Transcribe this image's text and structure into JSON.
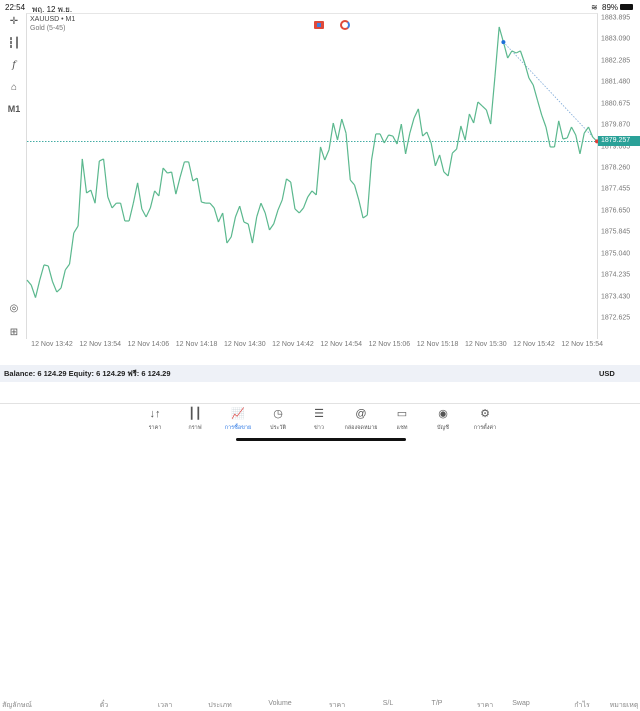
{
  "status_bar": {
    "time": "22:54",
    "date": "พฤ. 12 พ.ย.",
    "battery": "89%",
    "wifi_icon": "wifi-icon",
    "battery_icon": "battery-icon"
  },
  "chart": {
    "symbol": "XAUUSD • M1",
    "subtitle": "Gold (5-45)",
    "timeframe_button": "M1",
    "current_price_label": "1879.257",
    "line_color": "#5bb88e",
    "price_line_color": "#2aa198",
    "y_ticks": [
      "1883.895",
      "1883.090",
      "1882.285",
      "1881.480",
      "1880.675",
      "1879.870",
      "1879.065",
      "1878.260",
      "1877.455",
      "1876.650",
      "1875.845",
      "1875.040",
      "1874.235",
      "1873.430",
      "1872.625"
    ],
    "x_ticks": [
      "12 Nov 13:42",
      "12 Nov 13:54",
      "12 Nov 14:06",
      "12 Nov 14:18",
      "12 Nov 14:30",
      "12 Nov 14:42",
      "12 Nov 14:54",
      "12 Nov 15:06",
      "12 Nov 15:18",
      "12 Nov 15:30",
      "12 Nov 15:42",
      "12 Nov 15:54"
    ],
    "y_range": [
      1872.625,
      1883.895
    ],
    "trade": {
      "open_price": 1882.99,
      "close_price": 1879.26,
      "open_color": "#1e6fd9",
      "close_color": "#e0403a"
    },
    "prices": [
      1874.05,
      1873.86,
      1873.39,
      1874.05,
      1874.62,
      1874.58,
      1873.99,
      1873.6,
      1873.75,
      1874.43,
      1874.65,
      1875.82,
      1876.08,
      1878.6,
      1877.32,
      1877.43,
      1876.94,
      1878.52,
      1878.6,
      1877.17,
      1876.76,
      1876.94,
      1876.94,
      1876.27,
      1876.27,
      1876.94,
      1877.7,
      1876.72,
      1876.42,
      1876.76,
      1877.4,
      1877.21,
      1878.26,
      1878.07,
      1878.11,
      1877.28,
      1877.92,
      1878.49,
      1878.49,
      1877.77,
      1877.88,
      1876.98,
      1876.94,
      1876.94,
      1876.76,
      1876.23,
      1876.57,
      1875.44,
      1875.67,
      1876.42,
      1876.83,
      1876.23,
      1876.16,
      1875.44,
      1876.42,
      1876.94,
      1876.57,
      1875.93,
      1876.16,
      1876.68,
      1877.06,
      1877.85,
      1877.73,
      1876.72,
      1876.57,
      1876.76,
      1877.17,
      1877.4,
      1877.25,
      1879.05,
      1878.56,
      1878.94,
      1879.95,
      1879.31,
      1880.1,
      1879.57,
      1877.81,
      1877.62,
      1877.06,
      1876.38,
      1876.49,
      1878.56,
      1879.54,
      1879.54,
      1879.2,
      1879.5,
      1879.46,
      1879.16,
      1879.91,
      1878.79,
      1879.57,
      1880.14,
      1880.48,
      1879.46,
      1879.61,
      1879.2,
      1878.34,
      1878.75,
      1878.11,
      1877.96,
      1878.82,
      1878.97,
      1879.84,
      1879.31,
      1880.29,
      1879.95,
      1880.74,
      1880.59,
      1880.44,
      1879.91,
      1881.68,
      1883.56,
      1882.99,
      1882.39,
      1882.66,
      1882.58,
      1882.66,
      1882.2,
      1881.64,
      1881.38,
      1880.81,
      1880.25,
      1879.8,
      1879.05,
      1879.05,
      1880.03,
      1879.35,
      1879.39,
      1879.8,
      1879.5,
      1878.79,
      1879.57,
      1879.8,
      1879.42,
      1879.26
    ]
  },
  "table": {
    "columns": [
      "สัญลักษณ์",
      "ตั๋ว",
      "เวลา",
      "ประเภท",
      "Volume",
      "ราคา",
      "S/L",
      "T/P",
      "ราคา",
      "Swap",
      "กำไร",
      "หมายเหตุ"
    ]
  },
  "account": {
    "summary": "Balance: 6 124.29 Equity: 6 124.29 ฟรี: 6 124.29",
    "currency": "USD"
  },
  "nav": [
    {
      "label": "ราคา",
      "icon": "↓↑"
    },
    {
      "label": "กราฟ",
      "icon": "┃┃"
    },
    {
      "label": "การซื้อขาย",
      "icon": "📈"
    },
    {
      "label": "ประวัติ",
      "icon": "◷"
    },
    {
      "label": "ข่าว",
      "icon": "☰"
    },
    {
      "label": "กล่องจดหมาย",
      "icon": "@"
    },
    {
      "label": "แชท",
      "icon": "▭"
    },
    {
      "label": "บัญชี",
      "icon": "◉"
    },
    {
      "label": "การตั้งค่า",
      "icon": "⚙"
    }
  ]
}
